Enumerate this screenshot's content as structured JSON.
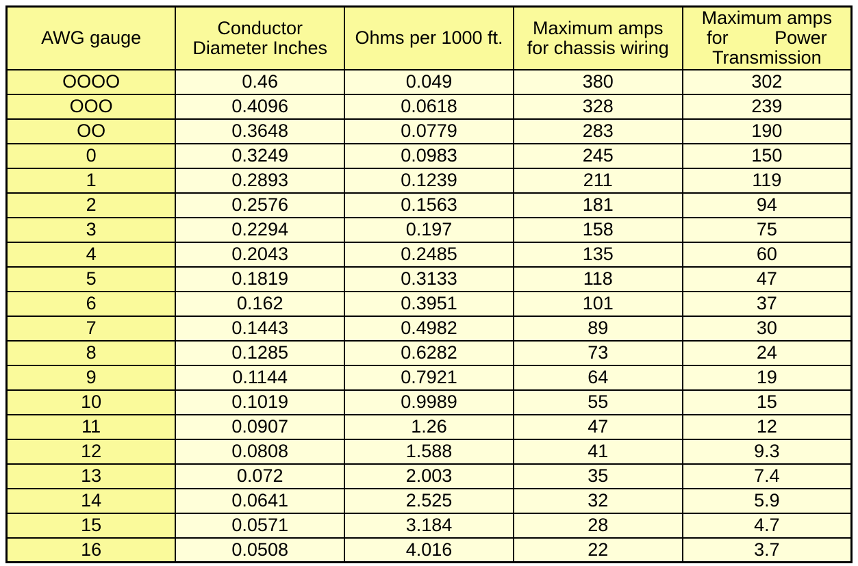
{
  "colors": {
    "header_bg": "#FAFA9B",
    "gauge_col_bg": "#FAFA9B",
    "cell_bg": "#FFFFD9",
    "border": "#000000",
    "text": "#000000",
    "page_bg": "#FFFFFF"
  },
  "table": {
    "columns": [
      "AWG gauge",
      "Conductor\nDiameter Inches",
      "Ohms per 1000 ft.",
      "Maximum amps\nfor chassis wiring",
      "Maximum amps\nfor         Power\nTransmission"
    ],
    "rows": [
      [
        "OOOO",
        "0.46",
        "0.049",
        "380",
        "302"
      ],
      [
        "OOO",
        "0.4096",
        "0.0618",
        "328",
        "239"
      ],
      [
        "OO",
        "0.3648",
        "0.0779",
        "283",
        "190"
      ],
      [
        "0",
        "0.3249",
        "0.0983",
        "245",
        "150"
      ],
      [
        "1",
        "0.2893",
        "0.1239",
        "211",
        "119"
      ],
      [
        "2",
        "0.2576",
        "0.1563",
        "181",
        "94"
      ],
      [
        "3",
        "0.2294",
        "0.197",
        "158",
        "75"
      ],
      [
        "4",
        "0.2043",
        "0.2485",
        "135",
        "60"
      ],
      [
        "5",
        "0.1819",
        "0.3133",
        "118",
        "47"
      ],
      [
        "6",
        "0.162",
        "0.3951",
        "101",
        "37"
      ],
      [
        "7",
        "0.1443",
        "0.4982",
        "89",
        "30"
      ],
      [
        "8",
        "0.1285",
        "0.6282",
        "73",
        "24"
      ],
      [
        "9",
        "0.1144",
        "0.7921",
        "64",
        "19"
      ],
      [
        "10",
        "0.1019",
        "0.9989",
        "55",
        "15"
      ],
      [
        "11",
        "0.0907",
        "1.26",
        "47",
        "12"
      ],
      [
        "12",
        "0.0808",
        "1.588",
        "41",
        "9.3"
      ],
      [
        "13",
        "0.072",
        "2.003",
        "35",
        "7.4"
      ],
      [
        "14",
        "0.0641",
        "2.525",
        "32",
        "5.9"
      ],
      [
        "15",
        "0.0571",
        "3.184",
        "28",
        "4.7"
      ],
      [
        "16",
        "0.0508",
        "4.016",
        "22",
        "3.7"
      ]
    ]
  }
}
